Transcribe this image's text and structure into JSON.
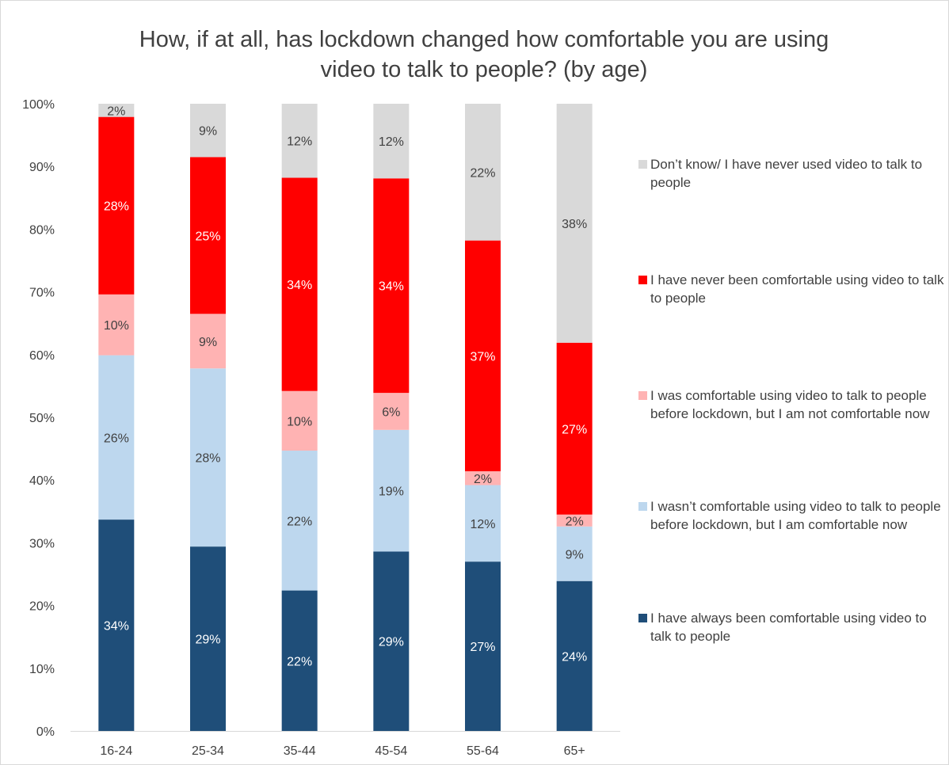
{
  "chart_data": {
    "type": "bar",
    "stacked": true,
    "title": "How, if at all, has lockdown changed how comfortable you are using video to talk to people? (by age)",
    "title_lines": [
      "How, if at all, has lockdown changed how comfortable you are using",
      "video to talk to people? (by age)"
    ],
    "categories": [
      "16-24",
      "25-34",
      "35-44",
      "45-54",
      "55-64",
      "65+"
    ],
    "ylim": [
      0,
      100
    ],
    "yticks": [
      "0%",
      "10%",
      "20%",
      "30%",
      "40%",
      "50%",
      "60%",
      "70%",
      "80%",
      "90%",
      "100%"
    ],
    "grid": false,
    "legend_position": "right",
    "series": [
      {
        "name": "I have always been comfortable using video to talk to people",
        "color": "#1f4e79",
        "label_color": "#ffffff",
        "values": [
          33.7,
          29.4,
          22.4,
          28.6,
          27.0,
          23.9
        ],
        "labels": [
          "34%",
          "29%",
          "22%",
          "29%",
          "27%",
          "24%"
        ]
      },
      {
        "name": "I wasn’t comfortable using video to talk to people before lockdown, but I am comfortable now",
        "color": "#bdd7ee",
        "label_color": "#404040",
        "values": [
          26.2,
          28.4,
          22.3,
          19.4,
          12.2,
          8.7
        ],
        "labels": [
          "26%",
          "28%",
          "22%",
          "19%",
          "12%",
          "9%"
        ]
      },
      {
        "name": "I was comfortable using video to talk to people before lockdown, but I am not comfortable now",
        "color": "#ffb3b3",
        "label_color": "#404040",
        "values": [
          9.7,
          8.7,
          9.5,
          5.9,
          2.2,
          1.9
        ],
        "labels": [
          "10%",
          "9%",
          "10%",
          "6%",
          "2%",
          "2%"
        ]
      },
      {
        "name": "I have never been comfortable using video to talk to people",
        "color": "#ff0000",
        "label_color": "#ffffff",
        "values": [
          28.3,
          25.0,
          34.0,
          34.2,
          36.8,
          27.4
        ],
        "labels": [
          "28%",
          "25%",
          "34%",
          "34%",
          "37%",
          "27%"
        ]
      },
      {
        "name": "Don’t know/ I have never used video to talk to people",
        "color": "#d9d9d9",
        "label_color": "#404040",
        "values": [
          2.1,
          8.5,
          11.8,
          11.9,
          21.8,
          38.1
        ],
        "labels": [
          "2%",
          "9%",
          "12%",
          "12%",
          "22%",
          "38%"
        ]
      }
    ],
    "legend_items": [
      {
        "name": "Don’t know/ I have never used video to talk to people",
        "color": "#d9d9d9"
      },
      {
        "name": "I have never been comfortable using video to talk to people",
        "color": "#ff0000"
      },
      {
        "name": "I was comfortable using video to talk to people before lockdown, but I am not comfortable now",
        "color": "#ffb3b3"
      },
      {
        "name": "I wasn’t comfortable using video to talk to people before lockdown, but I am comfortable now",
        "color": "#bdd7ee"
      },
      {
        "name": "I have always been comfortable using video to talk to people",
        "color": "#1f4e79"
      }
    ]
  }
}
